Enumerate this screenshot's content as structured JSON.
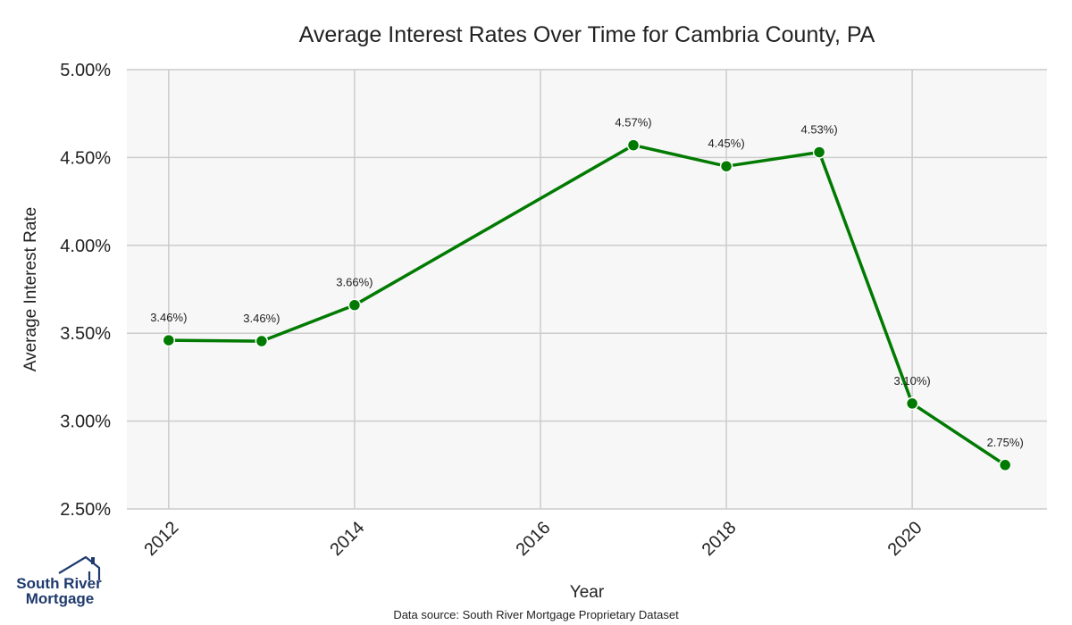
{
  "chart_data": {
    "type": "line",
    "title": "Average Interest Rates Over Time for Cambria County, PA",
    "xlabel": "Year",
    "ylabel": "Average Interest Rate",
    "x": [
      2012,
      2013,
      2014,
      2017,
      2018,
      2019,
      2020,
      2021
    ],
    "values": [
      3.46,
      3.455,
      3.66,
      4.57,
      4.45,
      4.53,
      3.1,
      2.75
    ],
    "data_labels": [
      "3.46%)",
      "3.46%)",
      "3.66%)",
      "4.57%)",
      "4.45%)",
      "4.53%)",
      "3.10%)",
      "2.75%)"
    ],
    "xlim": [
      2011.55,
      2021.45
    ],
    "ylim": [
      2.5,
      5.0
    ],
    "x_ticks": [
      2012,
      2014,
      2016,
      2018,
      2020
    ],
    "x_tick_labels": [
      "2012",
      "2014",
      "2016",
      "2018",
      "2020"
    ],
    "y_ticks": [
      2.5,
      3.0,
      3.5,
      4.0,
      4.5,
      5.0
    ],
    "y_tick_labels": [
      "2.50%",
      "3.00%",
      "3.50%",
      "4.00%",
      "4.50%",
      "5.00%"
    ],
    "grid": true,
    "line_color": "#007a00",
    "marker_color": "#007a00",
    "plot_background": "#f7f7f7",
    "grid_color": "#cccccc"
  },
  "source": "Data source: South River Mortgage Proprietary Dataset",
  "logo": {
    "line1": "South River",
    "line2": "Mortgage",
    "primary_color": "#1f3a6e",
    "house_color": "#1f3a6e"
  }
}
